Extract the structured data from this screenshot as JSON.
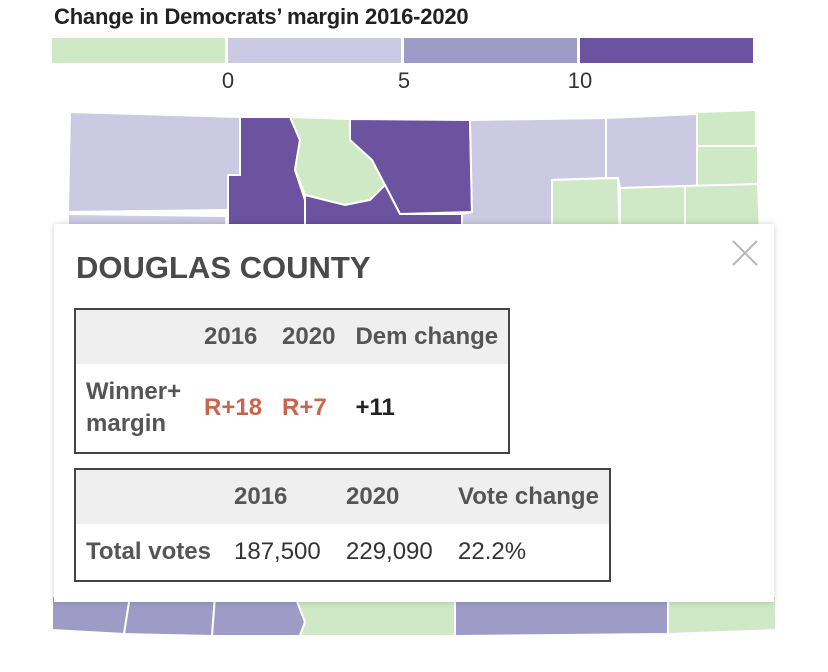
{
  "legend": {
    "title": "Change in Democrats’ margin 2016-2020",
    "colors": [
      "#cfe8c5",
      "#cccae3",
      "#9e9bc7",
      "#6b53a0"
    ],
    "ticks": [
      "0",
      "5",
      "10"
    ]
  },
  "tooltip": {
    "county": "DOUGLAS COUNTY",
    "margin_table": {
      "headers": [
        "",
        "2016",
        "2020",
        "Dem change"
      ],
      "row_label": "Winner+ margin",
      "row_label_line1": "Winner+",
      "row_label_line2": "margin",
      "m2016": "R+18",
      "m2020": "R+7",
      "change": "+11"
    },
    "votes_table": {
      "headers": [
        "",
        "2016",
        "2020",
        "Vote change"
      ],
      "row_label": "Total votes",
      "v2016": "187,500",
      "v2020": "229,090",
      "change": "22.2%"
    }
  },
  "colors": {
    "republican": "#c9644e",
    "dark_purple": "#6b53a0",
    "mid_purple": "#9e9bc7",
    "light_purple": "#cccae3",
    "green": "#cfe8c5"
  }
}
